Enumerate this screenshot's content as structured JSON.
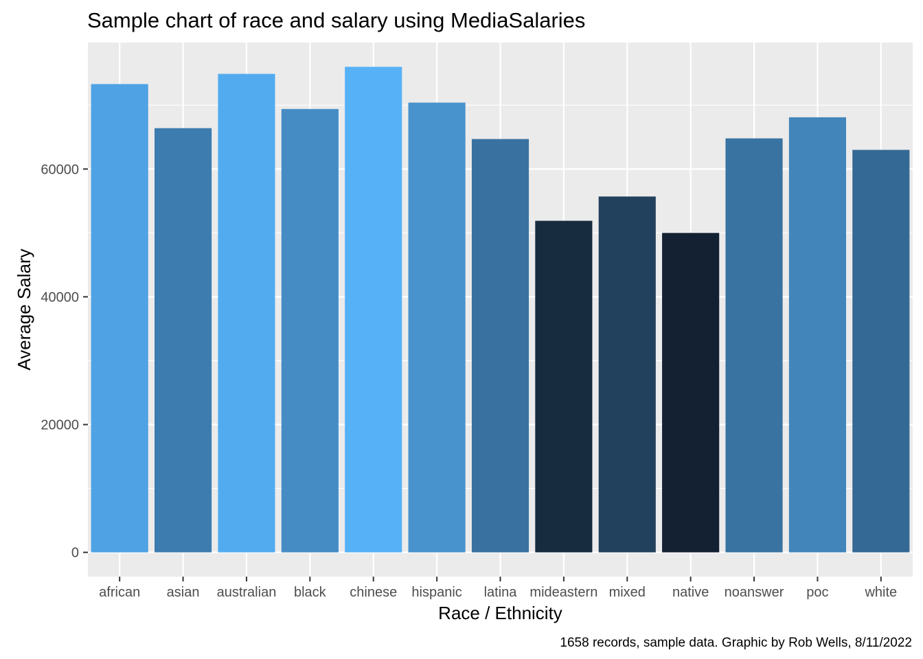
{
  "chart_data": {
    "type": "bar",
    "title": "Sample chart of race and salary using MediaSalaries",
    "xlabel": "Race / Ethnicity",
    "ylabel": "Average Salary",
    "caption": "1658 records, sample data. Graphic by Rob Wells, 8/11/2022",
    "categories": [
      "african",
      "asian",
      "australian",
      "black",
      "chinese",
      "hispanic",
      "latina",
      "mideastern",
      "mixed",
      "native",
      "noanswer",
      "poc",
      "white"
    ],
    "values": [
      73300,
      66400,
      74900,
      69400,
      76000,
      70400,
      64700,
      51900,
      55700,
      50000,
      64800,
      68100,
      63000
    ],
    "yticks": [
      0,
      20000,
      40000,
      60000
    ],
    "ytick_labels": [
      "0",
      "20000",
      "40000",
      "60000"
    ],
    "ylim": [
      -3800,
      79800
    ],
    "grid": true,
    "legend": "none",
    "color_scale": {
      "low": "#132132",
      "high": "#56B1F7",
      "domain": [
        50000,
        76000
      ]
    },
    "panel_background": "#EBEBEB",
    "grid_color": "#FFFFFF"
  }
}
